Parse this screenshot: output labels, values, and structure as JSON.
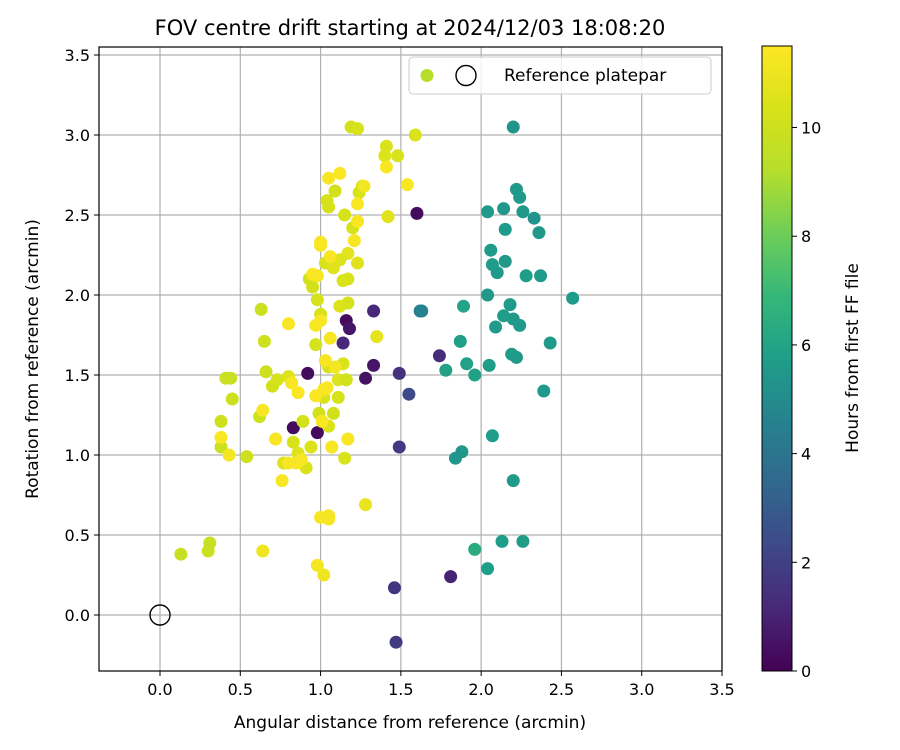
{
  "chart_data": {
    "type": "scatter",
    "title": "FOV centre drift starting at 2024/12/03 18:08:20",
    "xlabel": "Angular distance from reference (arcmin)",
    "ylabel": "Rotation from reference (arcmin)",
    "xlim": [
      -0.38,
      3.5
    ],
    "ylim": [
      -0.35,
      3.55
    ],
    "xticks": [
      0.0,
      0.5,
      1.0,
      1.5,
      2.0,
      2.5,
      3.0,
      3.5
    ],
    "xtick_labels": [
      "0.0",
      "0.5",
      "1.0",
      "1.5",
      "2.0",
      "2.5",
      "3.0",
      "3.5"
    ],
    "yticks": [
      0.0,
      0.5,
      1.0,
      1.5,
      2.0,
      2.5,
      3.0,
      3.5
    ],
    "ytick_labels": [
      "0.0",
      "0.5",
      "1.0",
      "1.5",
      "2.0",
      "2.5",
      "3.0",
      "3.5"
    ],
    "grid": true,
    "legend": {
      "placement": "top-right",
      "label": "Reference platepar",
      "sample_color": "#b5de2b"
    },
    "reference_point": {
      "x": 0.0,
      "y": 0.0
    },
    "colorbar": {
      "label": "Hours from first FF file",
      "min": 0,
      "max": 11.5,
      "colormap": "viridis",
      "ticks": [
        0,
        2,
        4,
        6,
        8,
        10
      ],
      "tick_labels": [
        "0",
        "2",
        "4",
        "6",
        "8",
        "10"
      ]
    },
    "points": [
      [
        0.92,
        1.51,
        0.3
      ],
      [
        0.83,
        1.17,
        0.3
      ],
      [
        0.98,
        1.14,
        0.3
      ],
      [
        1.16,
        1.84,
        0.3
      ],
      [
        1.6,
        2.51,
        0.3
      ],
      [
        1.28,
        1.48,
        0.5
      ],
      [
        1.33,
        1.56,
        0.6
      ],
      [
        1.18,
        1.79,
        0.6
      ],
      [
        1.81,
        0.24,
        1.0
      ],
      [
        1.33,
        1.9,
        1.2
      ],
      [
        1.14,
        1.7,
        1.2
      ],
      [
        1.74,
        1.62,
        1.3
      ],
      [
        1.49,
        1.51,
        1.5
      ],
      [
        1.46,
        0.17,
        1.6
      ],
      [
        1.49,
        1.05,
        1.8
      ],
      [
        1.47,
        -0.17,
        1.8
      ],
      [
        1.55,
        1.38,
        2.3
      ],
      [
        1.62,
        1.9,
        4.5
      ],
      [
        1.63,
        1.9,
        4.6
      ],
      [
        2.2,
        3.05,
        5.4
      ],
      [
        2.04,
        2.52,
        5.6
      ],
      [
        2.14,
        2.54,
        5.5
      ],
      [
        2.22,
        2.66,
        5.5
      ],
      [
        2.24,
        2.61,
        5.6
      ],
      [
        2.26,
        2.52,
        5.5
      ],
      [
        2.33,
        2.48,
        5.4
      ],
      [
        2.36,
        2.39,
        5.5
      ],
      [
        2.15,
        2.41,
        5.6
      ],
      [
        2.06,
        2.28,
        5.6
      ],
      [
        2.07,
        2.19,
        5.7
      ],
      [
        2.1,
        2.14,
        5.6
      ],
      [
        2.15,
        2.21,
        5.5
      ],
      [
        2.28,
        2.12,
        5.7
      ],
      [
        2.37,
        2.12,
        5.6
      ],
      [
        2.04,
        2.0,
        5.5
      ],
      [
        2.18,
        1.94,
        5.6
      ],
      [
        2.2,
        1.85,
        5.5
      ],
      [
        2.14,
        1.87,
        5.7
      ],
      [
        2.24,
        1.81,
        5.6
      ],
      [
        2.09,
        1.8,
        5.6
      ],
      [
        1.89,
        1.93,
        6.0
      ],
      [
        2.57,
        1.98,
        5.6
      ],
      [
        2.43,
        1.7,
        5.6
      ],
      [
        1.87,
        1.71,
        5.8
      ],
      [
        2.19,
        1.63,
        5.7
      ],
      [
        2.22,
        1.61,
        5.6
      ],
      [
        2.05,
        1.56,
        5.7
      ],
      [
        1.91,
        1.57,
        5.9
      ],
      [
        1.78,
        1.53,
        5.9
      ],
      [
        1.96,
        1.5,
        5.9
      ],
      [
        2.39,
        1.4,
        5.6
      ],
      [
        2.07,
        1.12,
        5.7
      ],
      [
        1.88,
        1.02,
        5.5
      ],
      [
        1.84,
        0.98,
        5.4
      ],
      [
        2.2,
        0.84,
        5.6
      ],
      [
        1.96,
        0.41,
        6.3
      ],
      [
        2.13,
        0.46,
        5.7
      ],
      [
        2.26,
        0.46,
        5.7
      ],
      [
        2.04,
        0.29,
        5.8
      ],
      [
        0.13,
        0.38,
        9.8
      ],
      [
        0.3,
        0.4,
        9.9
      ],
      [
        0.31,
        0.45,
        9.8
      ],
      [
        0.38,
        1.05,
        9.9
      ],
      [
        0.38,
        1.21,
        10.0
      ],
      [
        0.41,
        1.48,
        9.9
      ],
      [
        0.44,
        1.48,
        9.8
      ],
      [
        0.45,
        1.35,
        9.9
      ],
      [
        0.54,
        0.99,
        10.0
      ],
      [
        0.62,
        1.24,
        10.1
      ],
      [
        0.63,
        1.91,
        9.9
      ],
      [
        0.65,
        1.71,
        10.0
      ],
      [
        0.66,
        1.52,
        10.0
      ],
      [
        0.7,
        1.43,
        10.2
      ],
      [
        0.73,
        1.47,
        10.3
      ],
      [
        0.77,
        0.95,
        10.4
      ],
      [
        0.8,
        1.49,
        10.5
      ],
      [
        0.83,
        1.08,
        10.3
      ],
      [
        0.86,
        1.01,
        10.5
      ],
      [
        0.89,
        1.21,
        10.2
      ],
      [
        0.91,
        0.92,
        10.4
      ],
      [
        0.94,
        1.05,
        10.4
      ],
      [
        0.97,
        1.69,
        10.3
      ],
      [
        0.99,
        1.26,
        10.2
      ],
      [
        1.02,
        1.36,
        10.4
      ],
      [
        1.05,
        1.55,
        10.3
      ],
      [
        1.08,
        1.26,
        10.2
      ],
      [
        1.11,
        1.47,
        10.5
      ],
      [
        1.14,
        1.57,
        10.4
      ],
      [
        1.16,
        1.47,
        10.2
      ],
      [
        1.15,
        0.98,
        10.4
      ],
      [
        0.93,
        2.1,
        10.1
      ],
      [
        0.95,
        2.05,
        10.2
      ],
      [
        0.98,
        1.97,
        10.3
      ],
      [
        1.0,
        1.88,
        10.3
      ],
      [
        1.03,
        2.2,
        10.4
      ],
      [
        1.05,
        2.55,
        10.3
      ],
      [
        1.09,
        2.65,
        10.2
      ],
      [
        1.04,
        2.59,
        10.3
      ],
      [
        1.15,
        2.5,
        10.3
      ],
      [
        1.14,
        2.09,
        10.4
      ],
      [
        1.17,
        2.1,
        10.4
      ],
      [
        1.12,
        1.93,
        10.5
      ],
      [
        1.17,
        1.95,
        10.3
      ],
      [
        1.2,
        2.42,
        10.3
      ],
      [
        1.24,
        2.64,
        10.4
      ],
      [
        1.26,
        2.68,
        10.2
      ],
      [
        1.19,
        3.05,
        10.2
      ],
      [
        1.23,
        3.04,
        10.3
      ],
      [
        1.41,
        2.93,
        10.4
      ],
      [
        1.4,
        2.87,
        10.5
      ],
      [
        1.48,
        2.87,
        10.4
      ],
      [
        1.59,
        3.0,
        10.4
      ],
      [
        1.42,
        2.49,
        10.6
      ],
      [
        1.23,
        2.2,
        10.6
      ],
      [
        1.17,
        2.26,
        10.7
      ],
      [
        1.12,
        2.22,
        10.5
      ],
      [
        1.08,
        2.17,
        10.6
      ],
      [
        1.11,
        1.36,
        10.3
      ],
      [
        1.05,
        1.18,
        10.4
      ],
      [
        1.35,
        1.74,
        10.8
      ],
      [
        1.28,
        0.69,
        10.9
      ],
      [
        0.98,
        0.31,
        11.2
      ],
      [
        1.0,
        0.61,
        11.3
      ],
      [
        1.02,
        0.25,
        11.1
      ],
      [
        1.05,
        0.62,
        11.2
      ],
      [
        1.05,
        0.6,
        11.3
      ],
      [
        0.76,
        0.84,
        11.3
      ],
      [
        0.8,
        0.95,
        11.3
      ],
      [
        0.85,
        0.95,
        11.4
      ],
      [
        0.88,
        0.97,
        11.3
      ],
      [
        0.72,
        1.1,
        11.3
      ],
      [
        0.38,
        1.11,
        11.4
      ],
      [
        0.43,
        1.0,
        11.2
      ],
      [
        0.64,
        1.28,
        11.3
      ],
      [
        0.64,
        0.4,
        11.1
      ],
      [
        0.82,
        1.45,
        11.3
      ],
      [
        0.86,
        1.39,
        11.4
      ],
      [
        0.97,
        1.37,
        11.4
      ],
      [
        1.02,
        1.41,
        11.3
      ],
      [
        1.04,
        1.42,
        11.4
      ],
      [
        1.07,
        1.05,
        11.3
      ],
      [
        1.01,
        1.21,
        11.4
      ],
      [
        1.17,
        1.1,
        11.3
      ],
      [
        0.8,
        1.82,
        11.3
      ],
      [
        0.97,
        1.81,
        11.4
      ],
      [
        1.0,
        1.84,
        11.4
      ],
      [
        0.98,
        2.12,
        11.3
      ],
      [
        0.95,
        2.13,
        11.4
      ],
      [
        1.0,
        2.33,
        11.3
      ],
      [
        1.0,
        2.31,
        11.4
      ],
      [
        1.06,
        2.24,
        11.3
      ],
      [
        1.03,
        1.59,
        11.3
      ],
      [
        1.06,
        1.73,
        11.3
      ],
      [
        1.09,
        1.55,
        11.2
      ],
      [
        1.12,
        2.76,
        11.4
      ],
      [
        1.05,
        2.73,
        11.3
      ],
      [
        1.21,
        2.34,
        11.3
      ],
      [
        1.23,
        2.46,
        11.3
      ],
      [
        1.23,
        2.57,
        11.4
      ],
      [
        1.27,
        2.68,
        11.2
      ],
      [
        1.41,
        2.8,
        11.4
      ],
      [
        1.54,
        2.69,
        11.4
      ]
    ]
  }
}
